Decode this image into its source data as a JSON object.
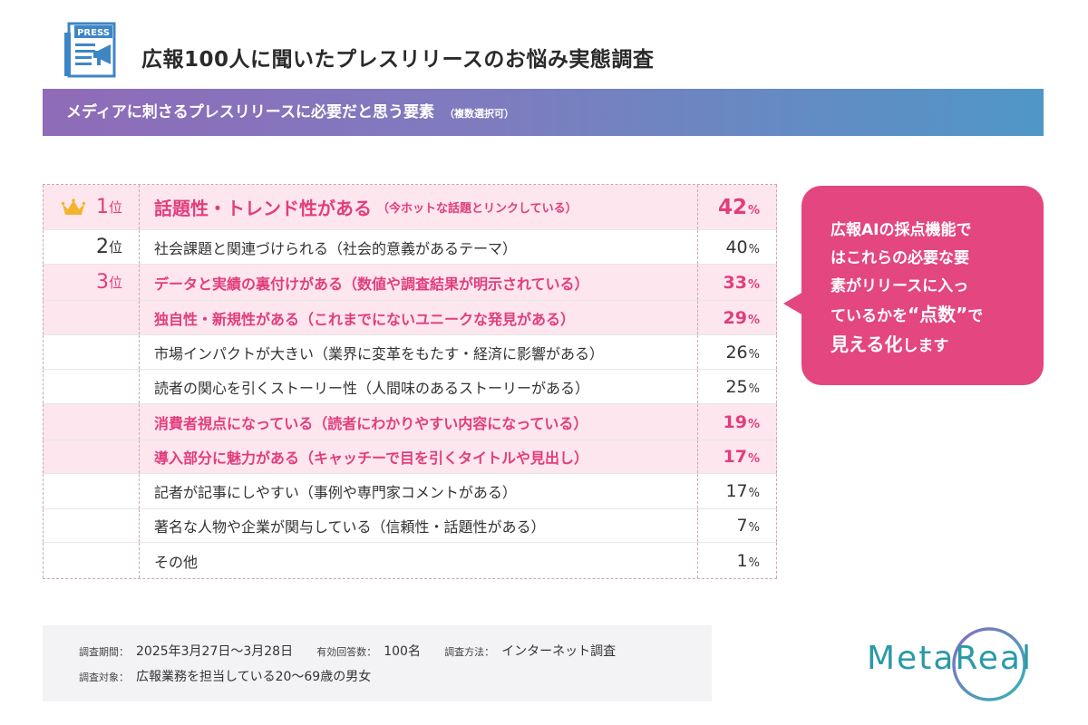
{
  "header": {
    "press_badge": "PRESS",
    "title": "広報100人に聞いたプレスリリースのお悩み実態調査"
  },
  "subtitle": {
    "main": "メディアに刺さるプレスリリースに必要だと思う要素",
    "note": "（複数選択可）"
  },
  "chart_data": {
    "type": "table",
    "rank_unit": "位",
    "percent_unit": "%",
    "rows": [
      {
        "rank": "1",
        "label": "話題性・トレンド性がある",
        "note": "（今ホットな話題とリンクしている）",
        "value": 42,
        "highlight": true
      },
      {
        "rank": "2",
        "label": "社会課題と関連づけられる（社会的意義があるテーマ）",
        "note": "",
        "value": 40,
        "highlight": false
      },
      {
        "rank": "3",
        "label": "データと実績の裏付けがある（数値や調査結果が明示されている）",
        "note": "",
        "value": 33,
        "highlight": true
      },
      {
        "rank": "",
        "label": "独自性・新規性がある（これまでにないユニークな発見がある）",
        "note": "",
        "value": 29,
        "highlight": true
      },
      {
        "rank": "",
        "label": "市場インパクトが大きい（業界に変革をもたす・経済に影響がある）",
        "note": "",
        "value": 26,
        "highlight": false
      },
      {
        "rank": "",
        "label": "読者の関心を引くストーリー性（人間味のあるストーリーがある）",
        "note": "",
        "value": 25,
        "highlight": false
      },
      {
        "rank": "",
        "label": "消費者視点になっている（読者にわかりやすい内容になっている）",
        "note": "",
        "value": 19,
        "highlight": true
      },
      {
        "rank": "",
        "label": "導入部分に魅力がある（キャッチーで目を引くタイトルや見出し）",
        "note": "",
        "value": 17,
        "highlight": true
      },
      {
        "rank": "",
        "label": "記者が記事にしやすい（事例や専門家コメントがある）",
        "note": "",
        "value": 17,
        "highlight": false
      },
      {
        "rank": "",
        "label": "著名な人物や企業が関与している（信頼性・話題性がある）",
        "note": "",
        "value": 7,
        "highlight": false
      },
      {
        "rank": "",
        "label": "その他",
        "note": "",
        "value": 1,
        "highlight": false
      }
    ]
  },
  "callout": {
    "line1": "広報AIの採点機能で",
    "line2": "はこれらの必要な要",
    "line3": "素がリリースに入っ",
    "line4_pre": "ているかを",
    "line4_em": "“点数”",
    "line4_post": "で",
    "line5_em": "見える化",
    "line5_post": "します"
  },
  "survey": {
    "period_label": "調査期間：",
    "period_value": "2025年3月27日〜3月28日",
    "responses_label": "有効回答数：",
    "responses_value": "100名",
    "method_label": "調査方法：",
    "method_value": "インターネット調査",
    "target_label": "調査対象：",
    "target_value": "広報業務を担当している20〜69歳の男女"
  },
  "logo": {
    "text": "MetaReal"
  },
  "colors": {
    "accent_pink": "#e23d7d",
    "highlight_bg": "#fde6ee",
    "bubble": "#e4467f",
    "logo_teal": "#2a9aa8"
  }
}
